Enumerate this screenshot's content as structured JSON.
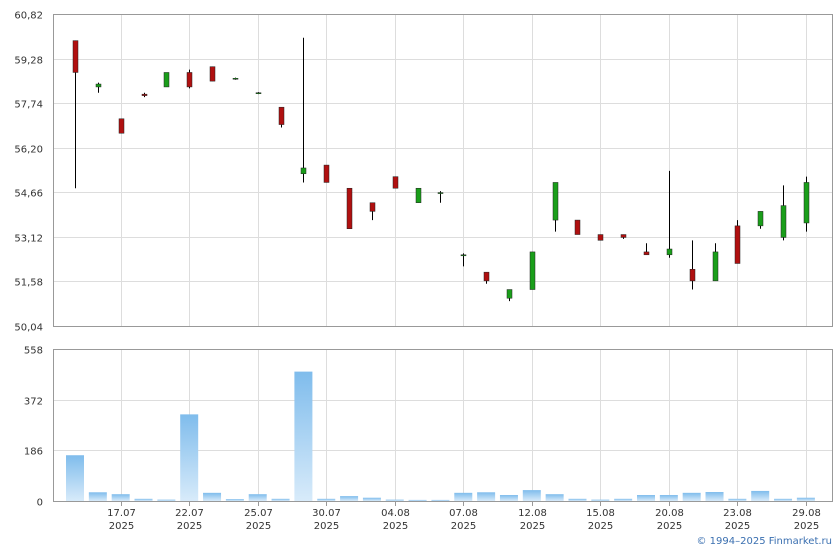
{
  "footer": {
    "credit": "© 1994–2025 Finmarket.ru"
  },
  "colors": {
    "up": "#1a9e1a",
    "down": "#b01010",
    "volume": "#7fbcec",
    "volume_light": "#d8ebfa",
    "grid": "#dddddd",
    "axis": "#999999",
    "wick": "#000000"
  },
  "chart_data": [
    {
      "type": "candlestick",
      "title": "",
      "ylim": [
        50.04,
        60.82
      ],
      "y_ticks": [
        "60,82",
        "59,28",
        "57,74",
        "56,20",
        "54,66",
        "53,12",
        "51,58",
        "50,04"
      ],
      "grid": true,
      "candles": [
        {
          "open": 59.9,
          "high": 59.9,
          "low": 54.8,
          "close": 58.8
        },
        {
          "open": 58.3,
          "high": 58.45,
          "low": 58.1,
          "close": 58.4
        },
        {
          "open": 57.2,
          "high": 57.2,
          "low": 56.7,
          "close": 56.7
        },
        {
          "open": 58.05,
          "high": 58.1,
          "low": 57.95,
          "close": 58.0
        },
        {
          "open": 58.3,
          "high": 58.8,
          "low": 58.3,
          "close": 58.8
        },
        {
          "open": 58.8,
          "high": 58.9,
          "low": 58.25,
          "close": 58.3
        },
        {
          "open": 59.0,
          "high": 59.0,
          "low": 58.5,
          "close": 58.5
        },
        {
          "open": 58.6,
          "high": 58.62,
          "low": 58.55,
          "close": 58.6
        },
        {
          "open": 58.1,
          "high": 58.12,
          "low": 58.05,
          "close": 58.1
        },
        {
          "open": 57.6,
          "high": 57.6,
          "low": 56.9,
          "close": 57.0
        },
        {
          "open": 55.3,
          "high": 60.0,
          "low": 55.0,
          "close": 55.5
        },
        {
          "open": 55.6,
          "high": 55.6,
          "low": 55.0,
          "close": 55.0
        },
        {
          "open": 54.8,
          "high": 54.8,
          "low": 53.4,
          "close": 53.4
        },
        {
          "open": 54.3,
          "high": 54.3,
          "low": 53.7,
          "close": 54.0
        },
        {
          "open": 55.2,
          "high": 55.2,
          "low": 54.8,
          "close": 54.8
        },
        {
          "open": 54.3,
          "high": 54.8,
          "low": 54.3,
          "close": 54.8
        },
        {
          "open": 54.65,
          "high": 54.7,
          "low": 54.3,
          "close": 54.65
        },
        {
          "open": 52.5,
          "high": 52.55,
          "low": 52.1,
          "close": 52.5
        },
        {
          "open": 51.9,
          "high": 51.9,
          "low": 51.5,
          "close": 51.6
        },
        {
          "open": 51.0,
          "high": 51.3,
          "low": 50.9,
          "close": 51.3
        },
        {
          "open": 51.3,
          "high": 52.6,
          "low": 51.3,
          "close": 52.6
        },
        {
          "open": 53.7,
          "high": 55.0,
          "low": 53.3,
          "close": 55.0
        },
        {
          "open": 53.7,
          "high": 53.7,
          "low": 53.2,
          "close": 53.2
        },
        {
          "open": 53.2,
          "high": 53.2,
          "low": 53.0,
          "close": 53.0
        },
        {
          "open": 53.2,
          "high": 53.2,
          "low": 53.05,
          "close": 53.1
        },
        {
          "open": 52.6,
          "high": 52.9,
          "low": 52.5,
          "close": 52.5
        },
        {
          "open": 52.5,
          "high": 55.4,
          "low": 52.4,
          "close": 52.7
        },
        {
          "open": 52.0,
          "high": 53.0,
          "low": 51.3,
          "close": 51.6
        },
        {
          "open": 51.6,
          "high": 52.9,
          "low": 51.6,
          "close": 52.6
        },
        {
          "open": 53.5,
          "high": 53.7,
          "low": 52.2,
          "close": 52.2
        },
        {
          "open": 53.5,
          "high": 54.0,
          "low": 53.4,
          "close": 54.0
        },
        {
          "open": 53.1,
          "high": 54.9,
          "low": 53.0,
          "close": 54.2
        },
        {
          "open": 53.6,
          "high": 55.2,
          "low": 53.3,
          "close": 55.0
        }
      ]
    },
    {
      "type": "bar",
      "title": "",
      "ylim": [
        0,
        558
      ],
      "y_ticks": [
        "558",
        "372",
        "186",
        "0"
      ],
      "x_ticks": [
        {
          "day": "17.07",
          "year": "2025",
          "index": 2
        },
        {
          "day": "22.07",
          "year": "2025",
          "index": 5
        },
        {
          "day": "25.07",
          "year": "2025",
          "index": 8
        },
        {
          "day": "30.07",
          "year": "2025",
          "index": 11
        },
        {
          "day": "04.08",
          "year": "2025",
          "index": 14
        },
        {
          "day": "07.08",
          "year": "2025",
          "index": 17
        },
        {
          "day": "12.08",
          "year": "2025",
          "index": 20
        },
        {
          "day": "15.08",
          "year": "2025",
          "index": 23
        },
        {
          "day": "20.08",
          "year": "2025",
          "index": 26
        },
        {
          "day": "23.08",
          "year": "2025",
          "index": 29
        },
        {
          "day": "29.08",
          "year": "2025",
          "index": 32
        }
      ],
      "values": [
        168,
        32,
        25,
        8,
        5,
        318,
        30,
        7,
        25,
        8,
        475,
        8,
        18,
        12,
        5,
        4,
        4,
        30,
        32,
        22,
        40,
        25,
        8,
        5,
        8,
        22,
        22,
        30,
        33,
        8,
        37,
        8,
        12
      ],
      "grid": true
    }
  ]
}
